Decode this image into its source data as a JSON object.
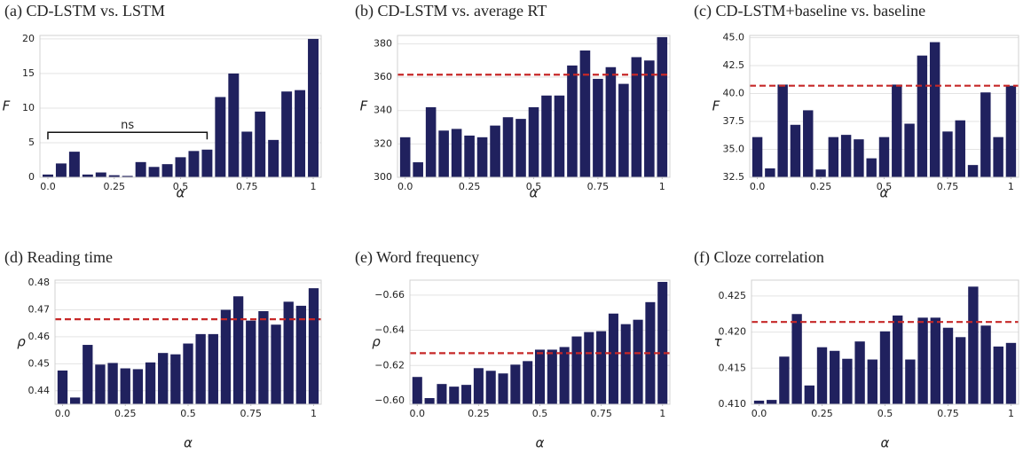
{
  "chart_data": [
    {
      "type": "bar",
      "title": "(a) CD-LSTM vs. LSTM",
      "xlabel": "α",
      "ylabel": "F",
      "color": "#20215e",
      "x": [
        0,
        0.05,
        0.1,
        0.15,
        0.2,
        0.25,
        0.3,
        0.35,
        0.4,
        0.45,
        0.5,
        0.55,
        0.6,
        0.65,
        0.7,
        0.75,
        0.8,
        0.85,
        0.9,
        0.95,
        1
      ],
      "values": [
        0.4,
        2.0,
        3.7,
        0.4,
        0.7,
        0.3,
        0.2,
        2.2,
        1.5,
        1.9,
        2.9,
        3.8,
        4.0,
        11.6,
        15.0,
        6.6,
        9.5,
        5.4,
        12.4,
        12.6,
        20.0
      ],
      "xlim": [
        -0.03,
        1.03
      ],
      "xticks": [
        {
          "value": 0,
          "label": "0.0"
        },
        0.25,
        0.5,
        0.75,
        1
      ],
      "ylim": [
        0,
        20.5
      ],
      "yticks": [
        0,
        5,
        10,
        15,
        20
      ],
      "grid": true,
      "annotations": [
        {
          "text": "ns",
          "x": [
            0,
            0.6
          ],
          "y": 6.5
        }
      ]
    },
    {
      "type": "bar",
      "title": "(b) CD-LSTM vs. average RT",
      "xlabel": "α",
      "ylabel": "F",
      "color": "#20215e",
      "x": [
        0,
        0.05,
        0.1,
        0.15,
        0.2,
        0.25,
        0.3,
        0.35,
        0.4,
        0.45,
        0.5,
        0.55,
        0.6,
        0.65,
        0.7,
        0.75,
        0.8,
        0.85,
        0.9,
        0.95,
        1
      ],
      "values": [
        324,
        309,
        342,
        328,
        329,
        325,
        324,
        331,
        336,
        335,
        342,
        349,
        349,
        367,
        376,
        359,
        366,
        356,
        372,
        370,
        384
      ],
      "xlim": [
        -0.03,
        1.03
      ],
      "xticks": [
        {
          "value": 0,
          "label": "0.0"
        },
        0.25,
        0.5,
        0.75,
        1
      ],
      "ylim": [
        300,
        385
      ],
      "yticks": [
        300,
        320,
        340,
        360,
        380
      ],
      "grid": true,
      "hline": {
        "value": 361.5,
        "color": "#c62828"
      }
    },
    {
      "type": "bar",
      "title": "(c) CD-LSTM+baseline vs. baseline",
      "xlabel": "α",
      "ylabel": "F",
      "color": "#20215e",
      "x": [
        0,
        0.05,
        0.1,
        0.15,
        0.2,
        0.25,
        0.3,
        0.35,
        0.4,
        0.45,
        0.5,
        0.55,
        0.6,
        0.65,
        0.7,
        0.75,
        0.8,
        0.85,
        0.9,
        0.95,
        1
      ],
      "values": [
        36.1,
        33.3,
        40.8,
        37.2,
        38.5,
        33.2,
        36.1,
        36.3,
        35.9,
        34.2,
        36.1,
        40.8,
        37.3,
        43.4,
        44.6,
        36.6,
        37.6,
        33.6,
        40.1,
        36.1,
        40.7
      ],
      "xlim": [
        -0.03,
        1.03
      ],
      "xticks": [
        {
          "value": 0,
          "label": "0.0"
        },
        0.25,
        0.5,
        0.75,
        1
      ],
      "ylim": [
        32.5,
        45.2
      ],
      "yticks": [
        32.5,
        {
          "value": 35,
          "label": "35.0"
        },
        37.5,
        {
          "value": 40,
          "label": "40.0"
        },
        42.5,
        {
          "value": 45,
          "label": "45.0"
        }
      ],
      "grid": true,
      "hline": {
        "value": 40.7,
        "color": "#c62828"
      }
    },
    {
      "type": "bar",
      "title": "(d) Reading time",
      "xlabel": "α",
      "ylabel": "ρ",
      "color": "#20215e",
      "x": [
        0,
        0.05,
        0.1,
        0.15,
        0.2,
        0.25,
        0.3,
        0.35,
        0.4,
        0.45,
        0.5,
        0.55,
        0.6,
        0.65,
        0.7,
        0.75,
        0.8,
        0.85,
        0.9,
        0.95,
        1
      ],
      "values": [
        0.4475,
        0.4375,
        0.457,
        0.4497,
        0.4503,
        0.4483,
        0.448,
        0.4505,
        0.454,
        0.4535,
        0.4575,
        0.461,
        0.461,
        0.47,
        0.475,
        0.466,
        0.4695,
        0.4645,
        0.473,
        0.4715,
        0.478
      ],
      "xlim": [
        -0.03,
        1.03
      ],
      "xticks": [
        {
          "value": 0,
          "label": "0.0"
        },
        0.25,
        0.5,
        0.75,
        1
      ],
      "ylim": [
        0.435,
        0.481
      ],
      "yticks": [
        0.44,
        0.45,
        0.46,
        0.47,
        0.48
      ],
      "grid": true,
      "hline": {
        "value": 0.4665,
        "color": "#c62828"
      }
    },
    {
      "type": "bar",
      "title": "(e) Word frequency",
      "xlabel": "α",
      "ylabel": "ρ",
      "color": "#20215e",
      "x": [
        0,
        0.05,
        0.1,
        0.15,
        0.2,
        0.25,
        0.3,
        0.35,
        0.4,
        0.45,
        0.5,
        0.55,
        0.6,
        0.65,
        0.7,
        0.75,
        0.8,
        0.85,
        0.9,
        0.95,
        1
      ],
      "values": [
        -0.6135,
        -0.6015,
        -0.6095,
        -0.608,
        -0.609,
        -0.6185,
        -0.617,
        -0.6155,
        -0.6205,
        -0.6225,
        -0.629,
        -0.629,
        -0.6305,
        -0.6365,
        -0.639,
        -0.6395,
        -0.6495,
        -0.6435,
        -0.646,
        -0.656,
        -0.6675
      ],
      "xlim": [
        -0.03,
        1.03
      ],
      "xticks": [
        {
          "value": 0,
          "label": "0.0"
        },
        0.25,
        0.5,
        0.75,
        1
      ],
      "ylim": [
        -0.598,
        -0.6685
      ],
      "yticks": [
        {
          "value": -0.6,
          "label": "−0.60"
        },
        {
          "value": -0.62,
          "label": "−0.62"
        },
        {
          "value": -0.64,
          "label": "−0.64"
        },
        {
          "value": -0.66,
          "label": "−0.66"
        }
      ],
      "grid": true,
      "hline": {
        "value": -0.627,
        "color": "#c62828"
      }
    },
    {
      "type": "bar",
      "title": "(f) Cloze correlation",
      "xlabel": "α",
      "ylabel": "τ",
      "color": "#20215e",
      "x": [
        0,
        0.05,
        0.1,
        0.15,
        0.2,
        0.25,
        0.3,
        0.35,
        0.4,
        0.45,
        0.5,
        0.55,
        0.6,
        0.65,
        0.7,
        0.75,
        0.8,
        0.85,
        0.9,
        0.95,
        1
      ],
      "values": [
        0.4105,
        0.4106,
        0.4166,
        0.4225,
        0.4126,
        0.4179,
        0.4174,
        0.4163,
        0.4187,
        0.4162,
        0.4201,
        0.4223,
        0.4162,
        0.422,
        0.422,
        0.4206,
        0.4193,
        0.4263,
        0.4209,
        0.418,
        0.4185
      ],
      "xlim": [
        -0.03,
        1.03
      ],
      "xticks": [
        {
          "value": 0,
          "label": "0.0"
        },
        0.25,
        0.5,
        0.75,
        1
      ],
      "ylim": [
        0.41,
        0.4272
      ],
      "yticks": [
        {
          "value": 0.41,
          "label": "0.410"
        },
        0.415,
        {
          "value": 0.42,
          "label": "0.420"
        },
        0.425
      ],
      "grid": true,
      "hline": {
        "value": 0.4214,
        "color": "#c62828"
      }
    }
  ]
}
